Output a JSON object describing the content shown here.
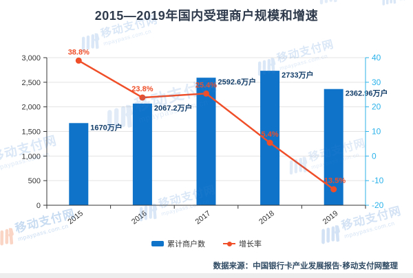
{
  "title": "2015—2019年国内受理商户规模和增速",
  "source": "数据来源：中国银行卡产业发展报告·移动支付网整理",
  "watermark": {
    "brand": "移动支付网",
    "url": "mpaypass.com.cn"
  },
  "colors": {
    "bar": "#0f74c9",
    "bar_label": "#123d69",
    "line": "#ef4e28",
    "line_label": "#ef4e28",
    "right_axis": "#2ab2ea",
    "dark_axis": "#333333",
    "grid": "#e3e3e3",
    "title": "#2f3b4c",
    "source_text": "#2f4a63",
    "watermark_blue": "#3a7fd0",
    "watermark_orange": "#f06a35"
  },
  "chart_data": {
    "type": "bar+line",
    "categories": [
      "2015",
      "2016",
      "2017",
      "2018",
      "2019"
    ],
    "series": [
      {
        "name": "累计商户数",
        "type": "bar",
        "axis": "left",
        "values": [
          1670,
          2067.2,
          2592.6,
          2733,
          2362.96
        ],
        "labels": [
          "1670万户",
          "2067.2万户",
          "2592.6万户",
          "2733万户",
          "2362.96万户"
        ]
      },
      {
        "name": "增长率",
        "type": "line",
        "axis": "right",
        "values": [
          38.8,
          23.8,
          25.4,
          5.4,
          -13.5
        ],
        "labels": [
          "38.8%",
          "23.8%",
          "25.4%",
          "5.4%",
          "-13.5%"
        ]
      }
    ],
    "left_axis": {
      "min": 0,
      "max": 3000,
      "ticks": [
        "3,000",
        "2,500",
        "2,000",
        "1,500",
        "1,000",
        "500",
        "0"
      ]
    },
    "right_axis": {
      "min": -20,
      "max": 40,
      "ticks": [
        "40",
        "30",
        "20",
        "10",
        "0",
        "-10",
        "-20"
      ]
    },
    "grid": true,
    "legend_position": "bottom"
  }
}
